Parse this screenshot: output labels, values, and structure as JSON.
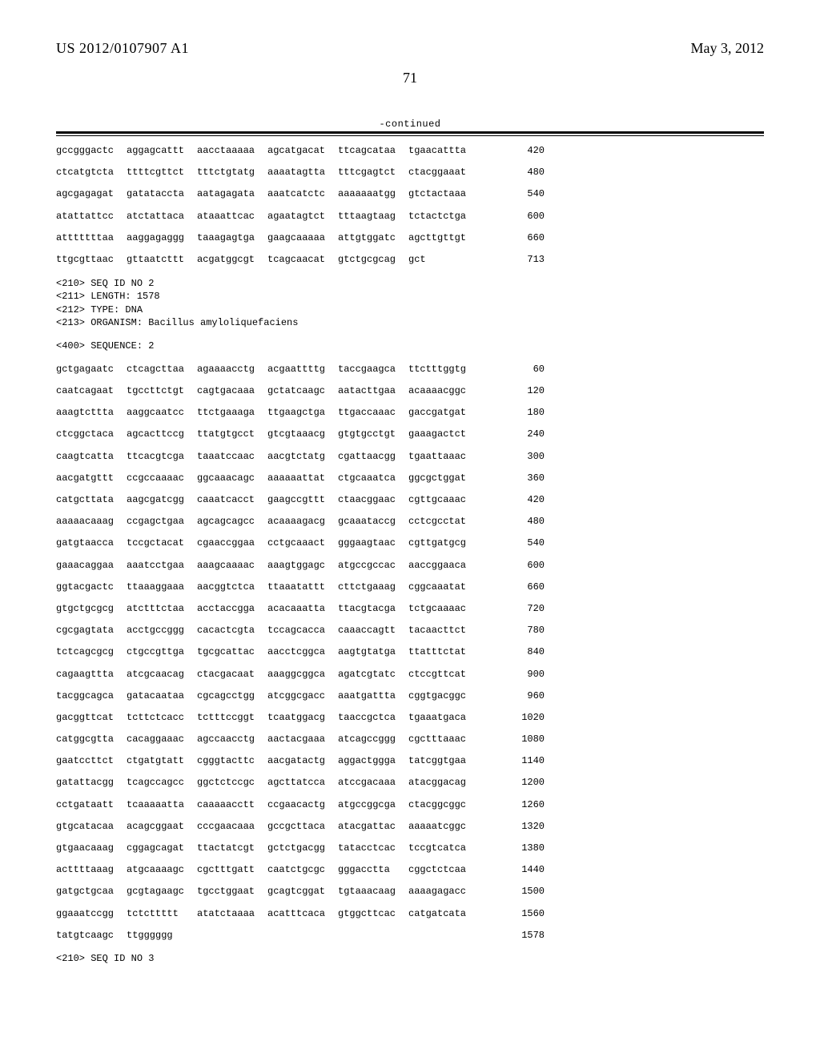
{
  "header": {
    "doc_number": "US 2012/0107907 A1",
    "doc_date": "May 3, 2012",
    "page_number": "71",
    "continued_label": "-continued"
  },
  "sequence_block_1": {
    "rows": [
      {
        "groups": [
          "gccgggactc",
          "aggagcattt",
          "aacctaaaaa",
          "agcatgacat",
          "ttcagcataa",
          "tgaacattta"
        ],
        "pos": "420"
      },
      {
        "groups": [
          "ctcatgtcta",
          "ttttcgttct",
          "tttctgtatg",
          "aaaatagtta",
          "tttcgagtct",
          "ctacggaaat"
        ],
        "pos": "480"
      },
      {
        "groups": [
          "agcgagagat",
          "gatataccta",
          "aatagagata",
          "aaatcatctc",
          "aaaaaaatgg",
          "gtctactaaa"
        ],
        "pos": "540"
      },
      {
        "groups": [
          "atattattcc",
          "atctattaca",
          "ataaattcac",
          "agaatagtct",
          "tttaagtaag",
          "tctactctga"
        ],
        "pos": "600"
      },
      {
        "groups": [
          "atttttttaa",
          "aaggagaggg",
          "taaagagtga",
          "gaagcaaaaa",
          "attgtggatc",
          "agcttgttgt"
        ],
        "pos": "660"
      },
      {
        "groups": [
          "ttgcgttaac",
          "gttaatcttt",
          "acgatggcgt",
          "tcagcaacat",
          "gtctgcgcag",
          "gct"
        ],
        "pos": "713"
      }
    ]
  },
  "seq_meta": {
    "lines": [
      "<210> SEQ ID NO 2",
      "<211> LENGTH: 1578",
      "<212> TYPE: DNA",
      "<213> ORGANISM: Bacillus amyloliquefaciens"
    ],
    "sequence_header": "<400> SEQUENCE: 2"
  },
  "sequence_block_2": {
    "rows": [
      {
        "groups": [
          "gctgagaatc",
          "ctcagcttaa",
          "agaaaacctg",
          "acgaattttg",
          "taccgaagca",
          "ttctttggtg"
        ],
        "pos": "60"
      },
      {
        "groups": [
          "caatcagaat",
          "tgccttctgt",
          "cagtgacaaa",
          "gctatcaagc",
          "aatacttgaa",
          "acaaaacggc"
        ],
        "pos": "120"
      },
      {
        "groups": [
          "aaagtcttta",
          "aaggcaatcc",
          "ttctgaaaga",
          "ttgaagctga",
          "ttgaccaaac",
          "gaccgatgat"
        ],
        "pos": "180"
      },
      {
        "groups": [
          "ctcggctaca",
          "agcacttccg",
          "ttatgtgcct",
          "gtcgtaaacg",
          "gtgtgcctgt",
          "gaaagactct"
        ],
        "pos": "240"
      },
      {
        "groups": [
          "caagtcatta",
          "ttcacgtcga",
          "taaatccaac",
          "aacgtctatg",
          "cgattaacgg",
          "tgaattaaac"
        ],
        "pos": "300"
      },
      {
        "groups": [
          "aacgatgttt",
          "ccgccaaaac",
          "ggcaaacagc",
          "aaaaaattat",
          "ctgcaaatca",
          "ggcgctggat"
        ],
        "pos": "360"
      },
      {
        "groups": [
          "catgcttata",
          "aagcgatcgg",
          "caaatcacct",
          "gaagccgttt",
          "ctaacggaac",
          "cgttgcaaac"
        ],
        "pos": "420"
      },
      {
        "groups": [
          "aaaaacaaag",
          "ccgagctgaa",
          "agcagcagcc",
          "acaaaagacg",
          "gcaaataccg",
          "cctcgcctat"
        ],
        "pos": "480"
      },
      {
        "groups": [
          "gatgtaacca",
          "tccgctacat",
          "cgaaccggaa",
          "cctgcaaact",
          "gggaagtaac",
          "cgttgatgcg"
        ],
        "pos": "540"
      },
      {
        "groups": [
          "gaaacaggaa",
          "aaatcctgaa",
          "aaagcaaaac",
          "aaagtggagc",
          "atgccgccac",
          "aaccggaaca"
        ],
        "pos": "600"
      },
      {
        "groups": [
          "ggtacgactc",
          "ttaaaggaaa",
          "aacggtctca",
          "ttaaatattt",
          "cttctgaaag",
          "cggcaaatat"
        ],
        "pos": "660"
      },
      {
        "groups": [
          "gtgctgcgcg",
          "atctttctaa",
          "acctaccgga",
          "acacaaatta",
          "ttacgtacga",
          "tctgcaaaac"
        ],
        "pos": "720"
      },
      {
        "groups": [
          "cgcgagtata",
          "acctgccggg",
          "cacactcgta",
          "tccagcacca",
          "caaaccagtt",
          "tacaacttct"
        ],
        "pos": "780"
      },
      {
        "groups": [
          "tctcagcgcg",
          "ctgccgttga",
          "tgcgcattac",
          "aacctcggca",
          "aagtgtatga",
          "ttatttctat"
        ],
        "pos": "840"
      },
      {
        "groups": [
          "cagaagttta",
          "atcgcaacag",
          "ctacgacaat",
          "aaaggcggca",
          "agatcgtatc",
          "ctccgttcat"
        ],
        "pos": "900"
      },
      {
        "groups": [
          "tacggcagca",
          "gatacaataa",
          "cgcagcctgg",
          "atcggcgacc",
          "aaatgattta",
          "cggtgacggc"
        ],
        "pos": "960"
      },
      {
        "groups": [
          "gacggttcat",
          "tcttctcacc",
          "tctttccggt",
          "tcaatggacg",
          "taaccgctca",
          "tgaaatgaca"
        ],
        "pos": "1020"
      },
      {
        "groups": [
          "catggcgtta",
          "cacaggaaac",
          "agccaacctg",
          "aactacgaaa",
          "atcagccggg",
          "cgctttaaac"
        ],
        "pos": "1080"
      },
      {
        "groups": [
          "gaatccttct",
          "ctgatgtatt",
          "cgggtacttc",
          "aacgatactg",
          "aggactggga",
          "tatcggtgaa"
        ],
        "pos": "1140"
      },
      {
        "groups": [
          "gatattacgg",
          "tcagccagcc",
          "ggctctccgc",
          "agcttatcca",
          "atccgacaaa",
          "atacggacag"
        ],
        "pos": "1200"
      },
      {
        "groups": [
          "cctgataatt",
          "tcaaaaatta",
          "caaaaacctt",
          "ccgaacactg",
          "atgccggcga",
          "ctacggcggc"
        ],
        "pos": "1260"
      },
      {
        "groups": [
          "gtgcatacaa",
          "acagcggaat",
          "cccgaacaaa",
          "gccgcttaca",
          "atacgattac",
          "aaaaatcggc"
        ],
        "pos": "1320"
      },
      {
        "groups": [
          "gtgaacaaag",
          "cggagcagat",
          "ttactatcgt",
          "gctctgacgg",
          "tatacctcac",
          "tccgtcatca"
        ],
        "pos": "1380"
      },
      {
        "groups": [
          "acttttaaag",
          "atgcaaaagc",
          "cgctttgatt",
          "caatctgcgc",
          "gggacctta",
          "cggctctcaa"
        ],
        "pos": "1440"
      },
      {
        "groups": [
          "gatgctgcaa",
          "gcgtagaagc",
          "tgcctggaat",
          "gcagtcggat",
          "tgtaaacaag",
          "aaaagagacc"
        ],
        "pos": "1500"
      },
      {
        "groups": [
          "ggaaatccgg",
          "tctcttttt",
          "atatctaaaa",
          "acatttcaca",
          "gtggcttcac",
          "catgatcata"
        ],
        "pos": "1560"
      },
      {
        "groups": [
          "tatgtcaagc",
          "ttgggggg",
          "",
          "",
          "",
          ""
        ],
        "pos": "1578"
      }
    ]
  },
  "footer_meta": {
    "line": "<210> SEQ ID NO 3"
  }
}
